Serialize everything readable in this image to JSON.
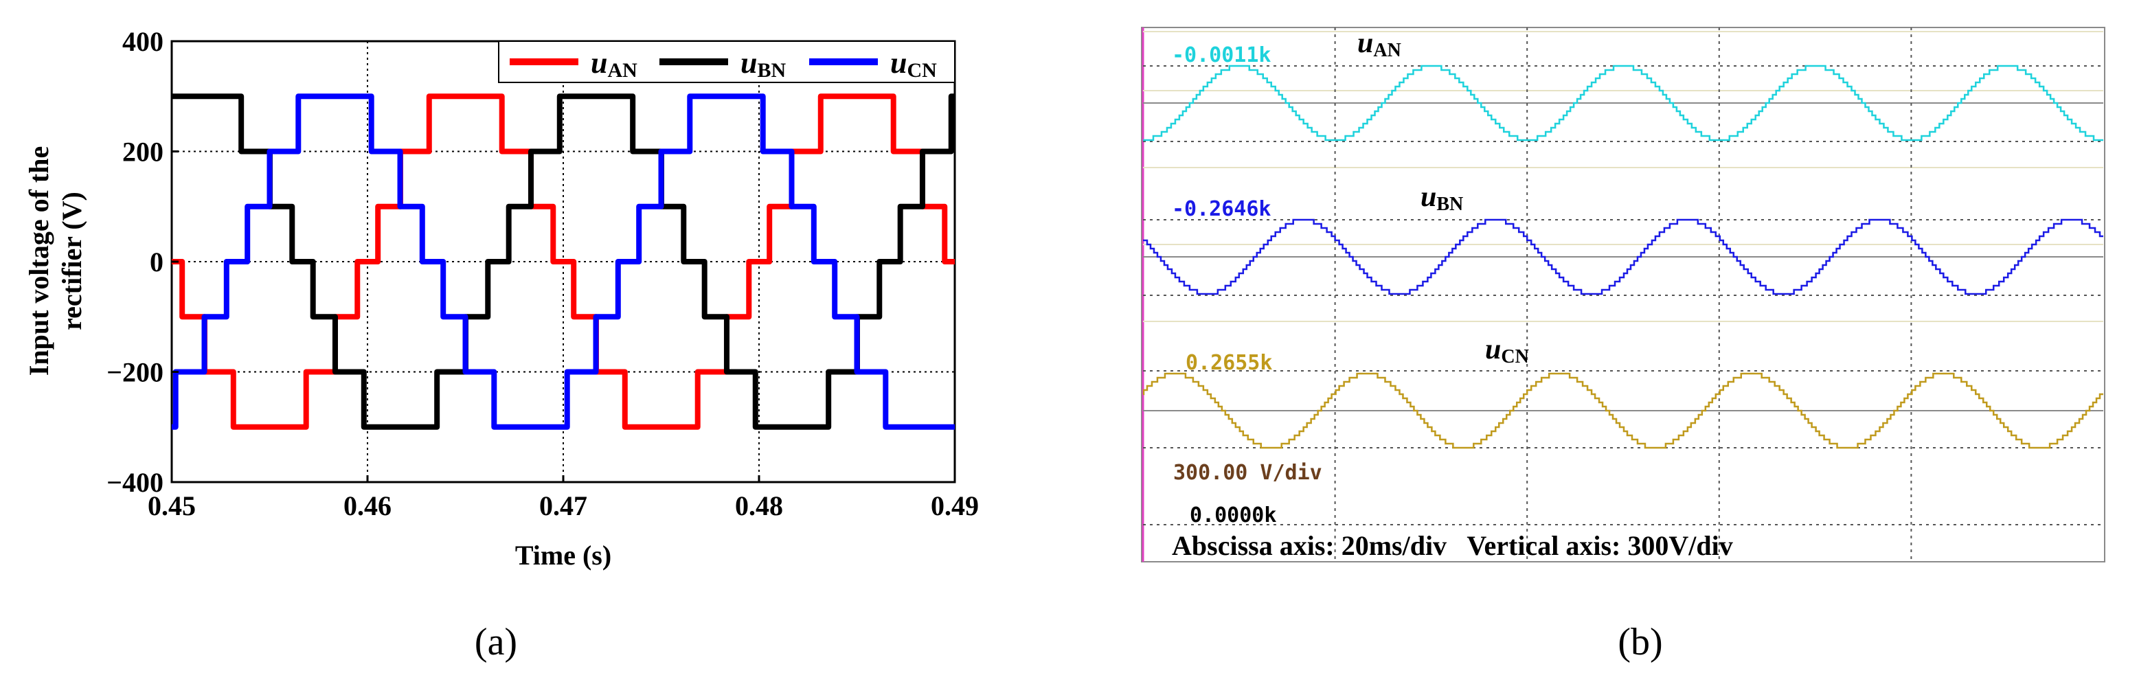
{
  "figure": {
    "panel_a_label": "(a)",
    "panel_b_label": "(b)"
  },
  "colors": {
    "uAN": "#ff0000",
    "uBN": "#000000",
    "uCN": "#0000ff",
    "scope_uAN": "#1ed2dc",
    "scope_uBN": "#1a1ae6",
    "scope_uCN": "#c09a1c",
    "scope_text_vdiv": "#6b3f1e",
    "scope_left_edge": "#e040c0",
    "scope_grid_solid": "#e6e2c4"
  },
  "chart_data": [
    {
      "type": "line",
      "panel": "a",
      "title": "",
      "xlabel": "Time (s)",
      "ylabel_line1": "Input voltage of the",
      "ylabel_line2": "rectifier (V)",
      "xlim": [
        0.45,
        0.49
      ],
      "ylim": [
        -400,
        400
      ],
      "x_ticks": [
        0.45,
        0.46,
        0.47,
        0.48,
        0.49
      ],
      "x_tick_labels": [
        "0.45",
        "0.46",
        "0.47",
        "0.48",
        "0.49"
      ],
      "y_ticks": [
        -400,
        -200,
        0,
        200,
        400
      ],
      "y_tick_labels": [
        "−400",
        "−200",
        "0",
        "200",
        "400"
      ],
      "grid": "dotted at 0.46, 0.47, 0.48 and ±200, 0",
      "legend_placement": "top-right",
      "waveform": "7-level staircase, levels ±300, ±200, ±100, 0, period 0.02 s",
      "series": [
        {
          "name": "uAN",
          "base": "u",
          "sub": "AN",
          "amplitude": 300,
          "period": 0.02,
          "zero_crossing_falling": 0.45
        },
        {
          "name": "uBN",
          "base": "u",
          "sub": "BN",
          "amplitude": 300,
          "period": 0.02,
          "zero_crossing_falling": 0.45667
        },
        {
          "name": "uCN",
          "base": "u",
          "sub": "CN",
          "amplitude": 300,
          "period": 0.02,
          "zero_crossing_falling": 0.46333
        }
      ]
    },
    {
      "type": "line",
      "panel": "b",
      "title": "",
      "caption": "Abscissa axis: 20ms/div   Vertical axis: 300V/div",
      "vdiv_label": "300.00 V/div",
      "offset_label": "0.0000k",
      "x_divisions": 10,
      "grid": "dotted",
      "traces": [
        {
          "name": "uAN",
          "base": "u",
          "sub": "AN",
          "readout": "-0.0011k",
          "cycles": 5
        },
        {
          "name": "uBN",
          "base": "u",
          "sub": "BN",
          "readout": "-0.2646k",
          "cycles": 5
        },
        {
          "name": "uCN",
          "base": "u",
          "sub": "CN",
          "readout": "0.2655k",
          "cycles": 5
        }
      ]
    }
  ]
}
